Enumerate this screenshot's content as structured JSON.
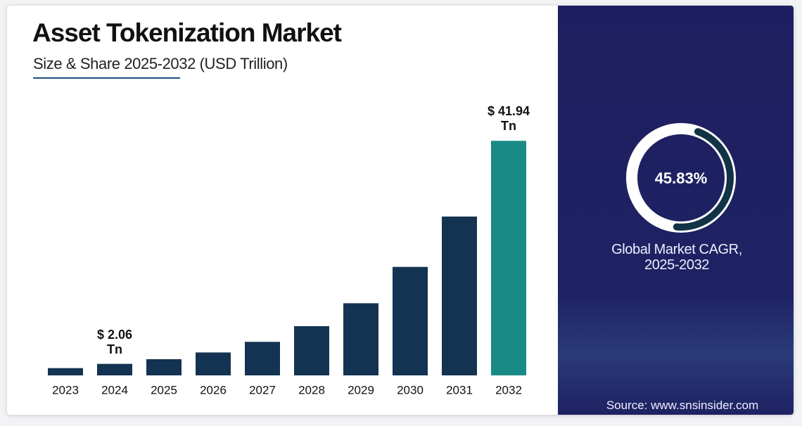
{
  "chart_data": {
    "type": "bar",
    "title": "Asset Tokenization Market",
    "subtitle": "Size & Share 2025-2032 (USD Trillion)",
    "categories": [
      "2023",
      "2024",
      "2025",
      "2026",
      "2027",
      "2028",
      "2029",
      "2030",
      "2031",
      "2032"
    ],
    "values": [
      1.3,
      2.06,
      2.9,
      4.1,
      6.0,
      8.8,
      12.9,
      19.4,
      28.4,
      41.94
    ],
    "value_labels": [
      null,
      "$ 2.06 Tn",
      null,
      null,
      null,
      null,
      null,
      null,
      null,
      "$ 41.94 Tn"
    ],
    "colors": [
      "#143352",
      "#143352",
      "#143352",
      "#143352",
      "#143352",
      "#143352",
      "#143352",
      "#143352",
      "#143352",
      "#1a8a86"
    ],
    "ylim": [
      0,
      45
    ],
    "kpi": {
      "value": 45.83,
      "label": "45.83%",
      "caption": "Global Market CAGR, 2025-2032"
    },
    "source": "Source: www.snsinsider.com"
  }
}
